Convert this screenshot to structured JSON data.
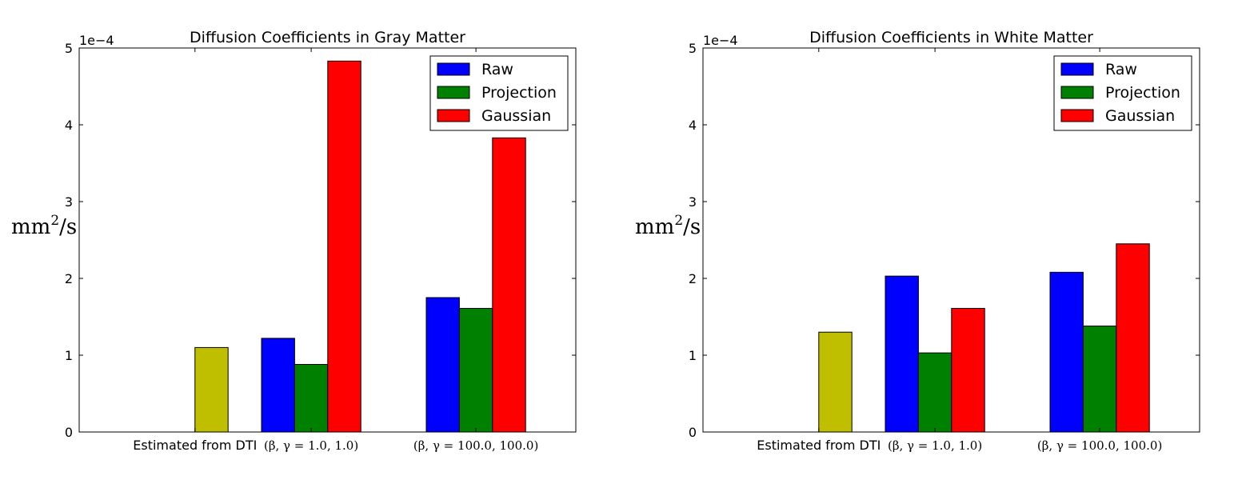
{
  "figure": {
    "colors": {
      "raw": "#0000ff",
      "projection": "#008000",
      "gaussian": "#ff0000",
      "dti": "#bfbf00"
    }
  },
  "chart_data": [
    {
      "type": "bar",
      "title": "Diffusion Coefficients in Gray Matter",
      "ylabel_base": "mm",
      "ylabel_exp": "2",
      "ylabel_unit": "/s",
      "offset_text": "1e−4",
      "scale": 0.0001,
      "ylim": [
        0,
        5
      ],
      "yticks": [
        "0",
        "1",
        "2",
        "3",
        "4",
        "5"
      ],
      "categories": [
        "Estimated from DTI",
        "(β, γ = 1.0, 1.0)",
        "(β, γ = 100.0, 100.0)"
      ],
      "dti": {
        "color": "#bfbf00",
        "value": 1.1
      },
      "series": [
        {
          "name": "Raw",
          "color": "#0000ff",
          "values": [
            null,
            1.22,
            1.75
          ]
        },
        {
          "name": "Projection",
          "color": "#008000",
          "values": [
            null,
            0.88,
            1.61
          ]
        },
        {
          "name": "Gaussian",
          "color": "#ff0000",
          "values": [
            null,
            4.83,
            3.83
          ]
        }
      ],
      "legend_position": "upper right",
      "grid": false
    },
    {
      "type": "bar",
      "title": "Diffusion Coefficients in White Matter",
      "ylabel_base": "mm",
      "ylabel_exp": "2",
      "ylabel_unit": "/s",
      "offset_text": "1e−4",
      "scale": 0.0001,
      "ylim": [
        0,
        5
      ],
      "yticks": [
        "0",
        "1",
        "2",
        "3",
        "4",
        "5"
      ],
      "categories": [
        "Estimated from DTI",
        "(β, γ = 1.0, 1.0)",
        "(β, γ = 100.0, 100.0)"
      ],
      "dti": {
        "color": "#bfbf00",
        "value": 1.3
      },
      "series": [
        {
          "name": "Raw",
          "color": "#0000ff",
          "values": [
            null,
            2.03,
            2.08
          ]
        },
        {
          "name": "Projection",
          "color": "#008000",
          "values": [
            null,
            1.03,
            1.38
          ]
        },
        {
          "name": "Gaussian",
          "color": "#ff0000",
          "values": [
            null,
            1.61,
            2.45
          ]
        }
      ],
      "legend_position": "upper right",
      "grid": false
    }
  ]
}
